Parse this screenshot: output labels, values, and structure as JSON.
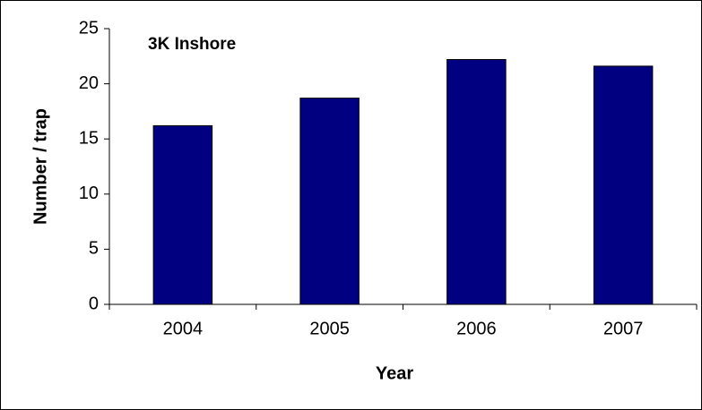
{
  "chart_data": {
    "type": "bar",
    "title": "3K Inshore",
    "x_label": "Year",
    "y_label": "Number / trap",
    "categories": [
      "2004",
      "2005",
      "2006",
      "2007"
    ],
    "values": [
      16.2,
      18.7,
      22.2,
      21.6
    ],
    "color": "#000080",
    "ylim": [
      0,
      25
    ],
    "yticks": [
      0,
      5,
      10,
      15,
      20,
      25
    ],
    "grid": false
  }
}
